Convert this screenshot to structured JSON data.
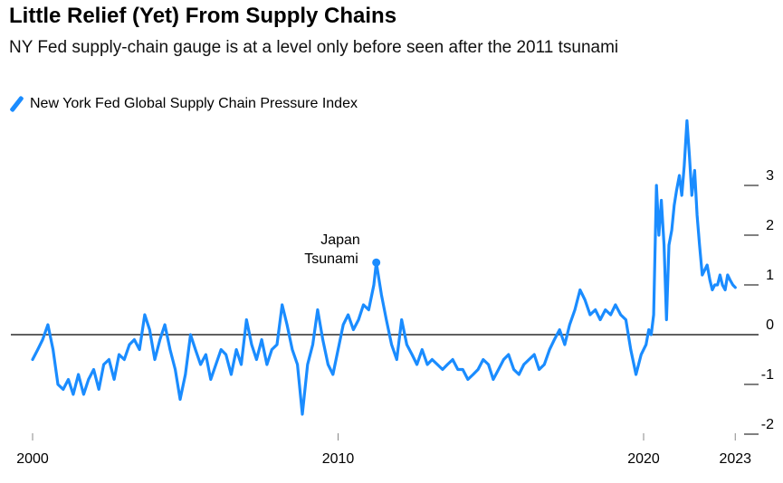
{
  "title": "Little Relief (Yet) From Supply Chains",
  "subtitle": "NY Fed supply-chain gauge is at a level only before seen after the 2011 tsunami",
  "legend": {
    "label": "New York Fed Global Supply Chain Pressure Index",
    "color": "#1a8cff"
  },
  "annotation": {
    "line1": "Japan",
    "line2": "Tsunami",
    "x": 2011.25,
    "y": 1.45
  },
  "chart_data": {
    "type": "line",
    "title": "Little Relief (Yet) From Supply Chains",
    "xlabel": "",
    "ylabel": "",
    "xlim": [
      2000,
      2023.1
    ],
    "ylim": [
      -2.2,
      4.2
    ],
    "y_ticks": [
      3,
      2,
      1,
      0,
      -1,
      -2
    ],
    "y_tick_labels": [
      "3",
      "2",
      "1",
      "0",
      "-1",
      "-2"
    ],
    "x_ticks": [
      2000,
      2010,
      2020,
      2023
    ],
    "x_tick_labels": [
      "2000",
      "2010",
      "2020",
      "2023"
    ],
    "zero_line": true,
    "grid": false,
    "legend_position": "top-left",
    "series": [
      {
        "name": "New York Fed Global Supply Chain Pressure Index",
        "color": "#1a8cff",
        "x": [
          2000.0,
          2000.17,
          2000.33,
          2000.5,
          2000.67,
          2000.83,
          2001.0,
          2001.17,
          2001.33,
          2001.5,
          2001.67,
          2001.83,
          2002.0,
          2002.17,
          2002.33,
          2002.5,
          2002.67,
          2002.83,
          2003.0,
          2003.17,
          2003.33,
          2003.5,
          2003.67,
          2003.83,
          2004.0,
          2004.17,
          2004.33,
          2004.5,
          2004.67,
          2004.83,
          2005.0,
          2005.17,
          2005.33,
          2005.5,
          2005.67,
          2005.83,
          2006.0,
          2006.17,
          2006.33,
          2006.5,
          2006.67,
          2006.83,
          2007.0,
          2007.17,
          2007.33,
          2007.5,
          2007.67,
          2007.83,
          2008.0,
          2008.17,
          2008.33,
          2008.5,
          2008.67,
          2008.83,
          2009.0,
          2009.17,
          2009.33,
          2009.5,
          2009.67,
          2009.83,
          2010.0,
          2010.17,
          2010.33,
          2010.5,
          2010.67,
          2010.83,
          2011.0,
          2011.17,
          2011.25,
          2011.42,
          2011.58,
          2011.75,
          2011.92,
          2012.08,
          2012.25,
          2012.42,
          2012.58,
          2012.75,
          2012.92,
          2013.08,
          2013.25,
          2013.42,
          2013.58,
          2013.75,
          2013.92,
          2014.08,
          2014.25,
          2014.42,
          2014.58,
          2014.75,
          2014.92,
          2015.08,
          2015.25,
          2015.42,
          2015.58,
          2015.75,
          2015.92,
          2016.08,
          2016.25,
          2016.42,
          2016.58,
          2016.75,
          2016.92,
          2017.08,
          2017.25,
          2017.42,
          2017.58,
          2017.75,
          2017.92,
          2018.08,
          2018.25,
          2018.42,
          2018.58,
          2018.75,
          2018.92,
          2019.08,
          2019.25,
          2019.42,
          2019.58,
          2019.75,
          2019.92,
          2020.08,
          2020.17,
          2020.25,
          2020.33,
          2020.42,
          2020.5,
          2020.58,
          2020.67,
          2020.75,
          2020.83,
          2020.92,
          2021.0,
          2021.08,
          2021.17,
          2021.25,
          2021.33,
          2021.42,
          2021.5,
          2021.58,
          2021.67,
          2021.75,
          2021.83,
          2021.92,
          2022.0,
          2022.08,
          2022.17,
          2022.25,
          2022.33,
          2022.42,
          2022.5,
          2022.58,
          2022.67,
          2022.75,
          2022.83,
          2022.92,
          2023.0
        ],
        "values": [
          -0.5,
          -0.3,
          -0.1,
          0.2,
          -0.3,
          -1.0,
          -1.1,
          -0.9,
          -1.2,
          -0.8,
          -1.2,
          -0.9,
          -0.7,
          -1.1,
          -0.6,
          -0.5,
          -0.9,
          -0.4,
          -0.5,
          -0.2,
          -0.1,
          -0.3,
          0.4,
          0.1,
          -0.5,
          -0.1,
          0.2,
          -0.3,
          -0.7,
          -1.3,
          -0.8,
          0.0,
          -0.3,
          -0.6,
          -0.4,
          -0.9,
          -0.6,
          -0.3,
          -0.4,
          -0.8,
          -0.3,
          -0.6,
          0.3,
          -0.2,
          -0.5,
          -0.1,
          -0.6,
          -0.3,
          -0.2,
          0.6,
          0.2,
          -0.3,
          -0.6,
          -1.6,
          -0.6,
          -0.2,
          0.5,
          -0.1,
          -0.6,
          -0.8,
          -0.3,
          0.2,
          0.4,
          0.1,
          0.3,
          0.6,
          0.5,
          1.0,
          1.45,
          0.8,
          0.3,
          -0.2,
          -0.5,
          0.3,
          -0.2,
          -0.4,
          -0.6,
          -0.3,
          -0.6,
          -0.5,
          -0.6,
          -0.7,
          -0.6,
          -0.5,
          -0.7,
          -0.7,
          -0.9,
          -0.8,
          -0.7,
          -0.5,
          -0.6,
          -0.9,
          -0.7,
          -0.5,
          -0.4,
          -0.7,
          -0.8,
          -0.6,
          -0.5,
          -0.4,
          -0.7,
          -0.6,
          -0.3,
          -0.1,
          0.1,
          -0.2,
          0.2,
          0.5,
          0.9,
          0.7,
          0.4,
          0.5,
          0.3,
          0.5,
          0.4,
          0.6,
          0.4,
          0.3,
          -0.3,
          -0.8,
          -0.4,
          -0.2,
          0.1,
          0.0,
          0.4,
          3.0,
          2.0,
          2.7,
          1.8,
          0.3,
          1.8,
          2.1,
          2.6,
          2.9,
          3.2,
          2.8,
          3.4,
          4.3,
          3.6,
          2.8,
          3.3,
          2.4,
          1.8,
          1.2,
          1.3,
          1.4,
          1.1,
          0.9,
          1.0,
          1.0,
          1.2,
          1.0,
          0.9,
          1.2,
          1.1,
          1.0,
          0.95
        ]
      }
    ]
  }
}
